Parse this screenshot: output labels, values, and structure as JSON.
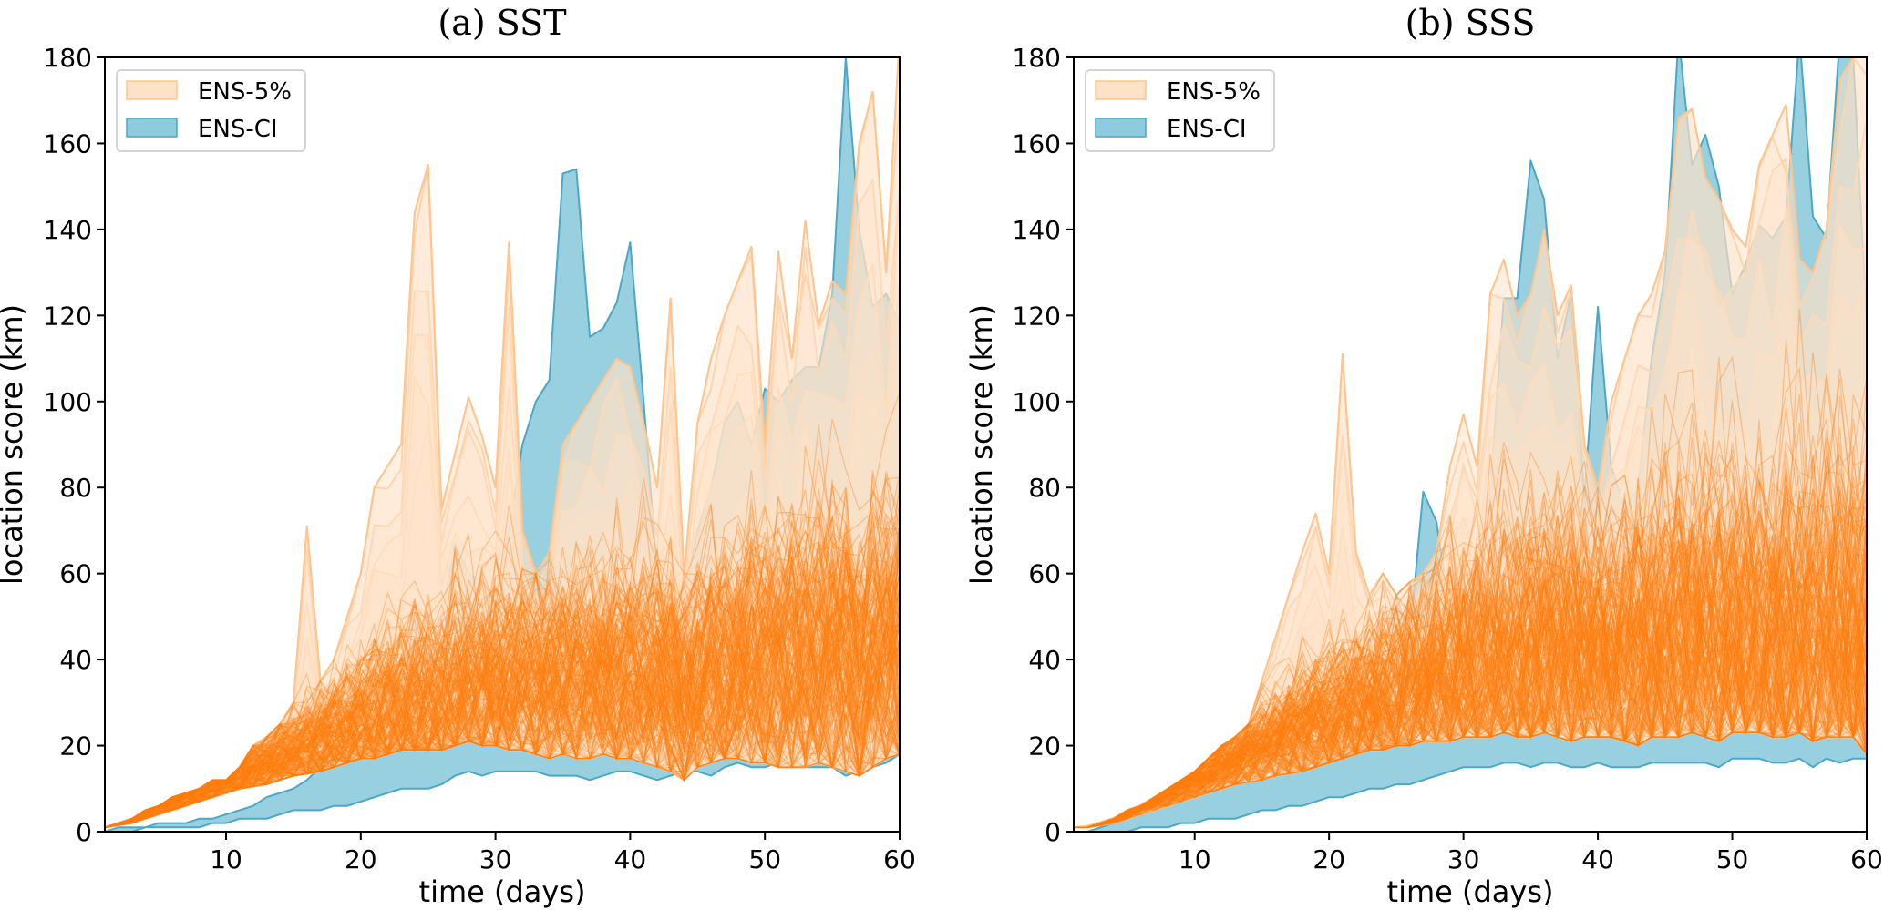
{
  "chart_data": [
    {
      "type": "area",
      "title": "(a) SST",
      "xlabel": "time (days)",
      "ylabel": "location score (km)",
      "xlim": [
        1,
        60
      ],
      "ylim": [
        0,
        180
      ],
      "xticks": [
        10,
        20,
        30,
        40,
        50,
        60
      ],
      "yticks": [
        0,
        20,
        40,
        60,
        80,
        100,
        120,
        140,
        160,
        180
      ],
      "grid": false,
      "legend": {
        "position": "top-left",
        "entries": [
          "ENS-5%",
          "ENS-CI"
        ]
      },
      "colors": {
        "ens5_fill": "#ffe3c8",
        "ens5_edge": "#ffc58f",
        "ensci_fill": "#8ecbdc",
        "ensci_edge": "#4aa8c6",
        "members": "#ff7f0e"
      },
      "x": [
        1,
        2,
        3,
        4,
        5,
        6,
        7,
        8,
        9,
        10,
        11,
        12,
        13,
        14,
        15,
        16,
        17,
        18,
        19,
        20,
        21,
        22,
        23,
        24,
        25,
        26,
        27,
        28,
        29,
        30,
        31,
        32,
        33,
        34,
        35,
        36,
        37,
        38,
        39,
        40,
        41,
        42,
        43,
        44,
        45,
        46,
        47,
        48,
        49,
        50,
        51,
        52,
        53,
        54,
        55,
        56,
        57,
        58,
        59,
        60
      ],
      "series": [
        {
          "name": "ENS-CI upper",
          "values": [
            0,
            1,
            1,
            1,
            2,
            2,
            2,
            3,
            3,
            4,
            5,
            6,
            8,
            9,
            10,
            12,
            15,
            17,
            20,
            22,
            25,
            35,
            32,
            53,
            40,
            50,
            67,
            60,
            58,
            55,
            70,
            90,
            100,
            105,
            153,
            154,
            115,
            117,
            123,
            137,
            100,
            60,
            40,
            55,
            70,
            80,
            95,
            100,
            90,
            103,
            100,
            105,
            108,
            108,
            125,
            180,
            140,
            122,
            125,
            118
          ]
        },
        {
          "name": "ENS-CI lower",
          "values": [
            -1,
            0,
            0,
            1,
            1,
            1,
            1,
            1,
            2,
            2,
            3,
            3,
            3,
            4,
            5,
            5,
            5,
            6,
            6,
            7,
            8,
            9,
            10,
            10,
            10,
            11,
            13,
            14,
            13,
            14,
            14,
            14,
            14,
            13,
            13,
            13,
            12,
            13,
            14,
            14,
            13,
            12,
            13,
            14,
            14,
            13,
            15,
            16,
            15,
            15,
            16,
            15,
            15,
            15,
            15,
            13,
            14,
            15,
            16,
            18
          ]
        },
        {
          "name": "ENS-5% upper",
          "values": [
            1,
            2,
            3,
            5,
            6,
            8,
            9,
            10,
            12,
            12,
            15,
            20,
            22,
            25,
            30,
            71,
            35,
            40,
            50,
            60,
            80,
            85,
            90,
            144,
            155,
            75,
            88,
            101,
            92,
            80,
            137,
            70,
            60,
            65,
            90,
            95,
            100,
            105,
            110,
            108,
            95,
            80,
            124,
            60,
            95,
            110,
            120,
            128,
            136,
            90,
            135,
            110,
            142,
            118,
            128,
            125,
            160,
            172,
            130,
            185
          ]
        },
        {
          "name": "ENS-5% lower",
          "values": [
            1,
            1.5,
            2,
            3,
            4,
            5,
            6,
            7,
            8,
            9,
            10,
            10.5,
            11,
            12,
            13,
            13.5,
            14,
            15,
            16,
            17,
            17,
            18,
            19,
            19,
            19,
            19,
            20,
            21,
            20,
            20,
            19,
            19,
            18,
            17,
            18,
            17,
            17,
            18,
            17,
            17,
            16,
            15,
            14,
            12,
            15,
            16,
            17,
            17,
            16,
            16,
            15,
            15,
            15,
            16,
            15,
            14,
            13,
            15,
            17,
            18
          ]
        },
        {
          "name": "ENS member center",
          "values": [
            1,
            2,
            3,
            4.5,
            6,
            7,
            8.5,
            10,
            11,
            12,
            13,
            14.5,
            15.5,
            17,
            18,
            19,
            20,
            21.5,
            22.5,
            24,
            25,
            26,
            27,
            28,
            28,
            29,
            30,
            31,
            32,
            33,
            34,
            34,
            34,
            34,
            35,
            35,
            35,
            35,
            35,
            36,
            36,
            35,
            34,
            32,
            34,
            35,
            36,
            37,
            38,
            38,
            39,
            40,
            40,
            41,
            41,
            42,
            35,
            40,
            42,
            45
          ]
        },
        {
          "name": "ENS member spread",
          "values": [
            0.2,
            0.4,
            0.6,
            0.9,
            1.2,
            1.5,
            1.8,
            2,
            2.3,
            2.5,
            2.8,
            3.2,
            3.5,
            4,
            4.5,
            5.5,
            6,
            6.5,
            7,
            8,
            9,
            10,
            10,
            11,
            11,
            11,
            12,
            12,
            12,
            12,
            12,
            12,
            12,
            12,
            12,
            12,
            12,
            12,
            13,
            13,
            13,
            13,
            13,
            12,
            13,
            14,
            14,
            15,
            15,
            15,
            16,
            16,
            16,
            16,
            17,
            17,
            16,
            17,
            18,
            19
          ]
        }
      ]
    },
    {
      "type": "area",
      "title": "(b) SSS",
      "xlabel": "time (days)",
      "ylabel": "location score (km)",
      "xlim": [
        1,
        60
      ],
      "ylim": [
        0,
        180
      ],
      "xticks": [
        10,
        20,
        30,
        40,
        50,
        60
      ],
      "yticks": [
        0,
        20,
        40,
        60,
        80,
        100,
        120,
        140,
        160,
        180
      ],
      "grid": false,
      "legend": {
        "position": "top-left",
        "entries": [
          "ENS-5%",
          "ENS-CI"
        ]
      },
      "colors": {
        "ens5_fill": "#ffe3c8",
        "ens5_edge": "#ffc58f",
        "ensci_fill": "#8ecbdc",
        "ensci_edge": "#4aa8c6",
        "members": "#ff7f0e"
      },
      "x": [
        1,
        2,
        3,
        4,
        5,
        6,
        7,
        8,
        9,
        10,
        11,
        12,
        13,
        14,
        15,
        16,
        17,
        18,
        19,
        20,
        21,
        22,
        23,
        24,
        25,
        26,
        27,
        28,
        29,
        30,
        31,
        32,
        33,
        34,
        35,
        36,
        37,
        38,
        39,
        40,
        41,
        42,
        43,
        44,
        45,
        46,
        47,
        48,
        49,
        50,
        51,
        52,
        53,
        54,
        55,
        56,
        57,
        58,
        59,
        60
      ],
      "series": [
        {
          "name": "ENS-CI upper",
          "values": [
            0,
            0,
            1,
            2,
            3,
            4,
            5,
            6,
            7,
            8,
            10,
            12,
            14,
            15,
            18,
            20,
            22,
            25,
            27,
            30,
            31,
            40,
            45,
            40,
            55,
            45,
            79,
            72,
            50,
            60,
            60,
            80,
            124,
            124,
            156,
            147,
            110,
            125,
            78,
            122,
            85,
            75,
            80,
            110,
            130,
            185,
            155,
            162,
            150,
            125,
            132,
            141,
            138,
            143,
            185,
            143,
            138,
            185,
            180,
            118
          ]
        },
        {
          "name": "ENS-CI lower",
          "values": [
            -2,
            -1,
            0,
            0,
            0,
            1,
            1,
            1,
            2,
            2,
            3,
            3,
            3,
            4,
            5,
            5,
            6,
            6,
            7,
            8,
            8,
            9,
            10,
            10,
            11,
            11,
            12,
            13,
            14,
            15,
            15,
            15,
            16,
            16,
            15,
            16,
            16,
            15,
            15,
            16,
            15,
            15,
            15,
            16,
            16,
            16,
            16,
            16,
            15,
            17,
            17,
            17,
            16,
            16,
            17,
            15,
            17,
            16,
            17,
            17
          ]
        },
        {
          "name": "ENS-5% upper",
          "values": [
            1,
            1,
            2,
            3,
            5,
            6,
            8,
            10,
            12,
            14,
            17,
            20,
            22,
            25,
            35,
            45,
            55,
            65,
            74,
            60,
            111,
            65,
            55,
            60,
            55,
            58,
            60,
            65,
            85,
            97,
            85,
            125,
            133,
            120,
            125,
            140,
            120,
            127,
            90,
            80,
            100,
            110,
            120,
            125,
            135,
            166,
            168,
            152,
            147,
            140,
            136,
            155,
            162,
            169,
            133,
            130,
            140,
            175,
            180,
            185
          ]
        },
        {
          "name": "ENS-5% lower",
          "values": [
            1,
            1,
            1.5,
            2,
            3,
            4,
            5,
            6,
            7,
            8,
            9,
            10,
            11,
            11.5,
            12,
            13,
            13.5,
            14,
            15,
            16,
            17,
            18,
            19,
            19,
            20,
            20,
            21,
            21,
            21,
            22,
            22,
            22,
            23,
            22,
            22,
            23,
            22,
            21,
            22,
            22,
            22,
            21,
            20,
            22,
            22,
            22,
            23,
            22,
            21,
            23,
            23,
            23,
            22,
            22,
            23,
            21,
            22,
            22,
            22,
            18
          ]
        },
        {
          "name": "ENS member center",
          "values": [
            1,
            1.5,
            2.5,
            3.5,
            5,
            6.5,
            8,
            9.5,
            11,
            12.5,
            14,
            15.5,
            17,
            18.5,
            20,
            21.5,
            23,
            24.5,
            26,
            27,
            28,
            29,
            30,
            31,
            32,
            33,
            34,
            35,
            36,
            37,
            38,
            39,
            40,
            40,
            41,
            42,
            42,
            42,
            41,
            41,
            41,
            42,
            42,
            43,
            44,
            46,
            46,
            46,
            45,
            44,
            44,
            45,
            45,
            46,
            45,
            45,
            45,
            46,
            46,
            45
          ]
        },
        {
          "name": "ENS member spread",
          "values": [
            0.2,
            0.3,
            0.5,
            0.8,
            1,
            1.3,
            1.6,
            2,
            2.3,
            2.7,
            3,
            3.5,
            4,
            4.5,
            5,
            5.5,
            6,
            7,
            7.5,
            8,
            9,
            9.5,
            10,
            10.5,
            11,
            11.5,
            12,
            13,
            13.5,
            14,
            15,
            15,
            16,
            16,
            17,
            17,
            17,
            17,
            17,
            17,
            17,
            18,
            18,
            18,
            19,
            20,
            20,
            20,
            20,
            20,
            20,
            20,
            20,
            21,
            21,
            21,
            21,
            22,
            22,
            22
          ]
        }
      ]
    }
  ]
}
